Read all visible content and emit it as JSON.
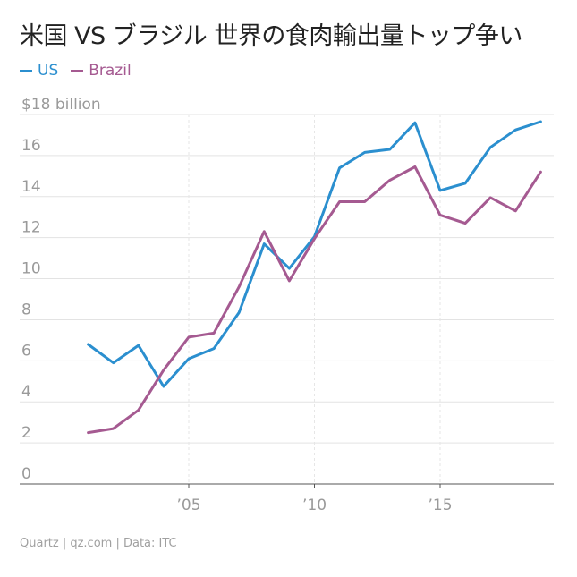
{
  "title": "米国 VS ブラジル 世界の食肉輸出量トップ争い",
  "legend": [
    {
      "label": "US",
      "color": "#2b8fcf"
    },
    {
      "label": "Brazil",
      "color": "#a55a91"
    }
  ],
  "footer": "Quartz | qz.com | Data: ITC",
  "chart_data": {
    "type": "line",
    "title": "米国 VS ブラジル 世界の食肉輸出量トップ争い",
    "xlabel": "",
    "ylabel": "",
    "xlim": [
      2000,
      2019
    ],
    "ylim": [
      0,
      18
    ],
    "y_ticks": [
      0,
      2,
      4,
      6,
      8,
      10,
      12,
      14,
      16,
      18
    ],
    "y_tick_labels": [
      "0",
      "2",
      "4",
      "6",
      "8",
      "10",
      "12",
      "14",
      "16",
      "$18 billion"
    ],
    "x_ticks": [
      2005,
      2010,
      2015
    ],
    "x_tick_labels": [
      "’05",
      "’10",
      "’15"
    ],
    "grid": true,
    "legend_position": "top-left",
    "x": [
      2001,
      2002,
      2003,
      2004,
      2005,
      2006,
      2007,
      2008,
      2009,
      2010,
      2011,
      2012,
      2013,
      2014,
      2015,
      2016,
      2017,
      2018,
      2019
    ],
    "series": [
      {
        "name": "US",
        "color": "#2b8fcf",
        "values": [
          6.8,
          5.9,
          6.75,
          4.75,
          6.1,
          6.6,
          8.35,
          11.7,
          10.5,
          12.05,
          15.4,
          16.15,
          16.3,
          17.6,
          14.3,
          14.65,
          16.4,
          17.25,
          17.65
        ]
      },
      {
        "name": "Brazil",
        "color": "#a55a91",
        "values": [
          2.5,
          2.7,
          3.6,
          5.55,
          7.15,
          7.35,
          9.6,
          12.3,
          9.9,
          11.95,
          13.75,
          13.75,
          14.8,
          15.45,
          13.1,
          12.7,
          13.95,
          13.3,
          15.2
        ]
      }
    ]
  }
}
